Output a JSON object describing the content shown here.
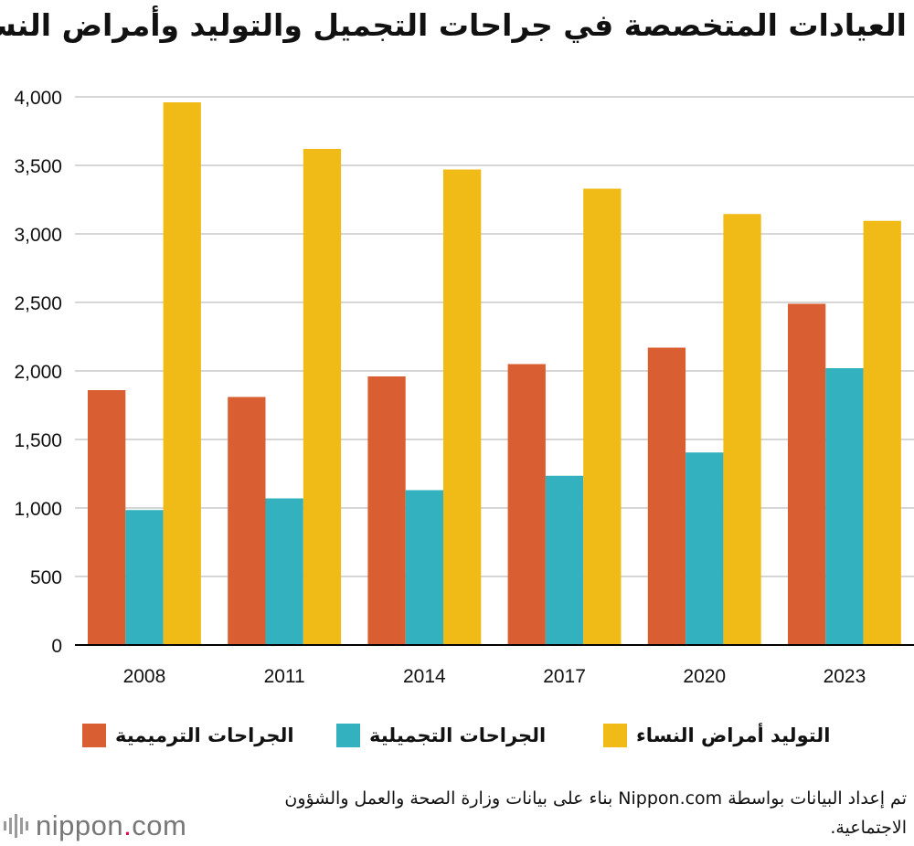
{
  "title": "العيادات المتخصصة في جراحات التجميل والتوليد وأمراض النساء",
  "chart_data": {
    "type": "bar",
    "categories": [
      "2008",
      "2011",
      "2014",
      "2017",
      "2020",
      "2023"
    ],
    "series": [
      {
        "name": "الجراحات الترميمية",
        "color": "#d95f33",
        "values": [
          1860,
          1810,
          1960,
          2050,
          2170,
          2490
        ]
      },
      {
        "name": "الجراحات التجميلية",
        "color": "#34b1be",
        "values": [
          985,
          1070,
          1130,
          1235,
          1405,
          2020
        ]
      },
      {
        "name": "التوليد أمراض النساء",
        "color": "#f0bb17",
        "values": [
          3960,
          3620,
          3470,
          3330,
          3145,
          3095
        ]
      }
    ],
    "yticks": [
      "0",
      "500",
      "1,000",
      "1,500",
      "2,000",
      "2,500",
      "3,000",
      "3,500",
      "4,000"
    ],
    "ylim": [
      0,
      4000
    ],
    "grid": true
  },
  "legend": {
    "yellow_label": "التوليد أمراض النساء",
    "teal_label": "الجراحات التجميلية",
    "orange_label": "الجراحات الترميمية"
  },
  "source": "تم إعداد البيانات بواسطة Nippon.com بناء على بيانات وزارة الصحة والعمل والشؤون الاجتماعية.",
  "logo": {
    "brand": "nippon",
    "dot": ".",
    "tld": "com"
  }
}
